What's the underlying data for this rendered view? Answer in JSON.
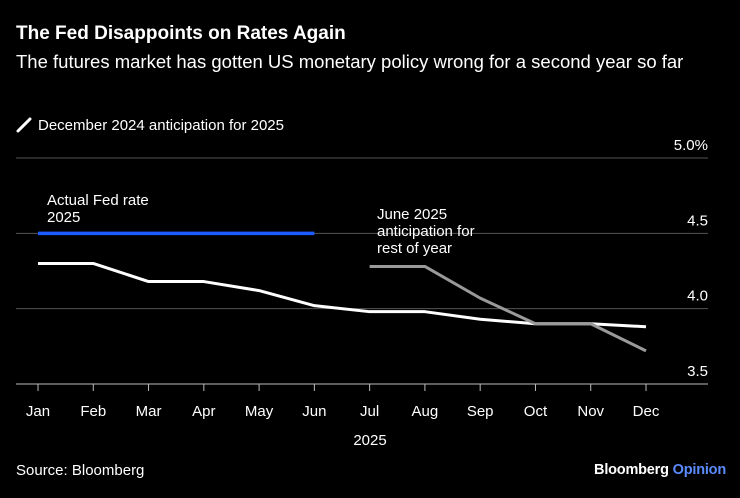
{
  "title": "The Fed Disappoints on Rates Again",
  "subtitle": "The futures market has gotten US monetary policy wrong for a second year so far",
  "legend_label": "December 2024 anticipation for 2025",
  "source": "Source: Bloomberg",
  "brand": {
    "name": "Bloomberg",
    "product": "Opinion"
  },
  "colors": {
    "background": "#000000",
    "actual": "#1a5cff",
    "dec2024": "#ffffff",
    "june2025": "#9a9a9a",
    "grid": "#555555",
    "brand_accent": "#5b8cff"
  },
  "chart_data": {
    "type": "line",
    "title": "The Fed Disappoints on Rates Again",
    "xlabel": "2025",
    "ylabel": "",
    "categories": [
      "Jan",
      "Feb",
      "Mar",
      "Apr",
      "May",
      "Jun",
      "Jul",
      "Aug",
      "Sep",
      "Oct",
      "Nov",
      "Dec"
    ],
    "ylim": [
      3.5,
      5.0
    ],
    "yticks": [
      {
        "value": 5.0,
        "label": "5.0%"
      },
      {
        "value": 4.5,
        "label": "4.5"
      },
      {
        "value": 4.0,
        "label": "4.0"
      },
      {
        "value": 3.5,
        "label": "3.5"
      }
    ],
    "series": [
      {
        "name": "Actual Fed rate 2025",
        "label_lines": [
          "Actual Fed rate",
          "2025"
        ],
        "color": "#1a5cff",
        "x": [
          "Jan",
          "Feb",
          "Mar",
          "Apr",
          "May",
          "Jun"
        ],
        "values": [
          4.5,
          4.5,
          4.5,
          4.5,
          4.5,
          4.5
        ]
      },
      {
        "name": "December 2024 anticipation for 2025",
        "color": "#ffffff",
        "x": [
          "Jan",
          "Feb",
          "Mar",
          "Apr",
          "May",
          "Jun",
          "Jul",
          "Aug",
          "Sep",
          "Oct",
          "Nov",
          "Dec"
        ],
        "values": [
          4.3,
          4.3,
          4.18,
          4.18,
          4.12,
          4.02,
          3.98,
          3.98,
          3.93,
          3.9,
          3.9,
          3.88
        ]
      },
      {
        "name": "June 2025 anticipation for rest of year",
        "label_lines": [
          "June 2025",
          "anticipation for",
          "rest of year"
        ],
        "color": "#9a9a9a",
        "x": [
          "Jul",
          "Aug",
          "Sep",
          "Oct",
          "Nov",
          "Dec"
        ],
        "values": [
          4.28,
          4.28,
          4.07,
          3.9,
          3.9,
          3.72
        ]
      }
    ]
  }
}
